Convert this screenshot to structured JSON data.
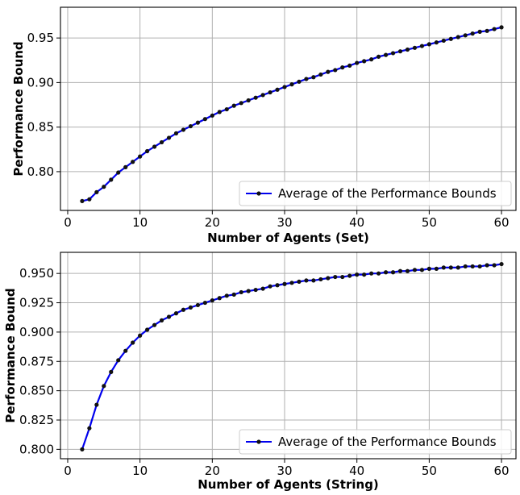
{
  "chart_data": [
    {
      "type": "line",
      "xlabel": "Number of Agents (Set)",
      "ylabel": "Performance Bound",
      "xlim": [
        -1,
        62
      ],
      "ylim": [
        0.7565,
        0.9845
      ],
      "xticks": [
        0,
        10,
        20,
        30,
        40,
        50,
        60
      ],
      "yticks": [
        0.8,
        0.85,
        0.9,
        0.95
      ],
      "ytick_labels": [
        "0.80",
        "0.85",
        "0.90",
        "0.95"
      ],
      "grid": true,
      "legend": {
        "position": "bottom-right",
        "entries": [
          "Average of the Performance Bounds"
        ]
      },
      "series": [
        {
          "name": "Average of the Performance Bounds",
          "color": "#0000ee",
          "marker_color": "#111111",
          "x": [
            2,
            3,
            4,
            5,
            6,
            7,
            8,
            9,
            10,
            11,
            12,
            13,
            14,
            15,
            16,
            17,
            18,
            19,
            20,
            21,
            22,
            23,
            24,
            25,
            26,
            27,
            28,
            29,
            30,
            31,
            32,
            33,
            34,
            35,
            36,
            37,
            38,
            39,
            40,
            41,
            42,
            43,
            44,
            45,
            46,
            47,
            48,
            49,
            50,
            51,
            52,
            53,
            54,
            55,
            56,
            57,
            58,
            59,
            60
          ],
          "values": [
            0.767,
            0.769,
            0.777,
            0.783,
            0.791,
            0.799,
            0.805,
            0.811,
            0.817,
            0.823,
            0.828,
            0.833,
            0.838,
            0.843,
            0.847,
            0.851,
            0.855,
            0.859,
            0.863,
            0.867,
            0.87,
            0.874,
            0.877,
            0.88,
            0.883,
            0.886,
            0.889,
            0.892,
            0.895,
            0.898,
            0.901,
            0.904,
            0.906,
            0.909,
            0.912,
            0.914,
            0.917,
            0.919,
            0.922,
            0.924,
            0.926,
            0.929,
            0.931,
            0.933,
            0.935,
            0.937,
            0.939,
            0.941,
            0.943,
            0.945,
            0.947,
            0.949,
            0.951,
            0.953,
            0.955,
            0.957,
            0.958,
            0.96,
            0.962
          ]
        }
      ]
    },
    {
      "type": "line",
      "xlabel": "Number of Agents (String)",
      "ylabel": "Performance Bound",
      "xlim": [
        -1,
        62
      ],
      "ylim": [
        0.792,
        0.968
      ],
      "xticks": [
        0,
        10,
        20,
        30,
        40,
        50,
        60
      ],
      "yticks": [
        0.8,
        0.825,
        0.85,
        0.875,
        0.9,
        0.925,
        0.95
      ],
      "ytick_labels": [
        "0.800",
        "0.825",
        "0.850",
        "0.875",
        "0.900",
        "0.925",
        "0.950"
      ],
      "grid": true,
      "legend": {
        "position": "bottom-right",
        "entries": [
          "Average of the Performance Bounds"
        ]
      },
      "series": [
        {
          "name": "Average of the Performance Bounds",
          "color": "#0000ee",
          "marker_color": "#111111",
          "x": [
            2,
            3,
            4,
            5,
            6,
            7,
            8,
            9,
            10,
            11,
            12,
            13,
            14,
            15,
            16,
            17,
            18,
            19,
            20,
            21,
            22,
            23,
            24,
            25,
            26,
            27,
            28,
            29,
            30,
            31,
            32,
            33,
            34,
            35,
            36,
            37,
            38,
            39,
            40,
            41,
            42,
            43,
            44,
            45,
            46,
            47,
            48,
            49,
            50,
            51,
            52,
            53,
            54,
            55,
            56,
            57,
            58,
            59,
            60
          ],
          "values": [
            0.8,
            0.818,
            0.838,
            0.854,
            0.866,
            0.876,
            0.884,
            0.891,
            0.897,
            0.902,
            0.906,
            0.91,
            0.913,
            0.916,
            0.919,
            0.921,
            0.923,
            0.925,
            0.927,
            0.929,
            0.931,
            0.932,
            0.934,
            0.935,
            0.936,
            0.937,
            0.939,
            0.94,
            0.941,
            0.942,
            0.943,
            0.944,
            0.944,
            0.945,
            0.946,
            0.947,
            0.947,
            0.948,
            0.949,
            0.949,
            0.95,
            0.95,
            0.951,
            0.951,
            0.952,
            0.952,
            0.953,
            0.953,
            0.954,
            0.954,
            0.955,
            0.955,
            0.955,
            0.956,
            0.956,
            0.956,
            0.957,
            0.957,
            0.958
          ]
        }
      ]
    }
  ]
}
